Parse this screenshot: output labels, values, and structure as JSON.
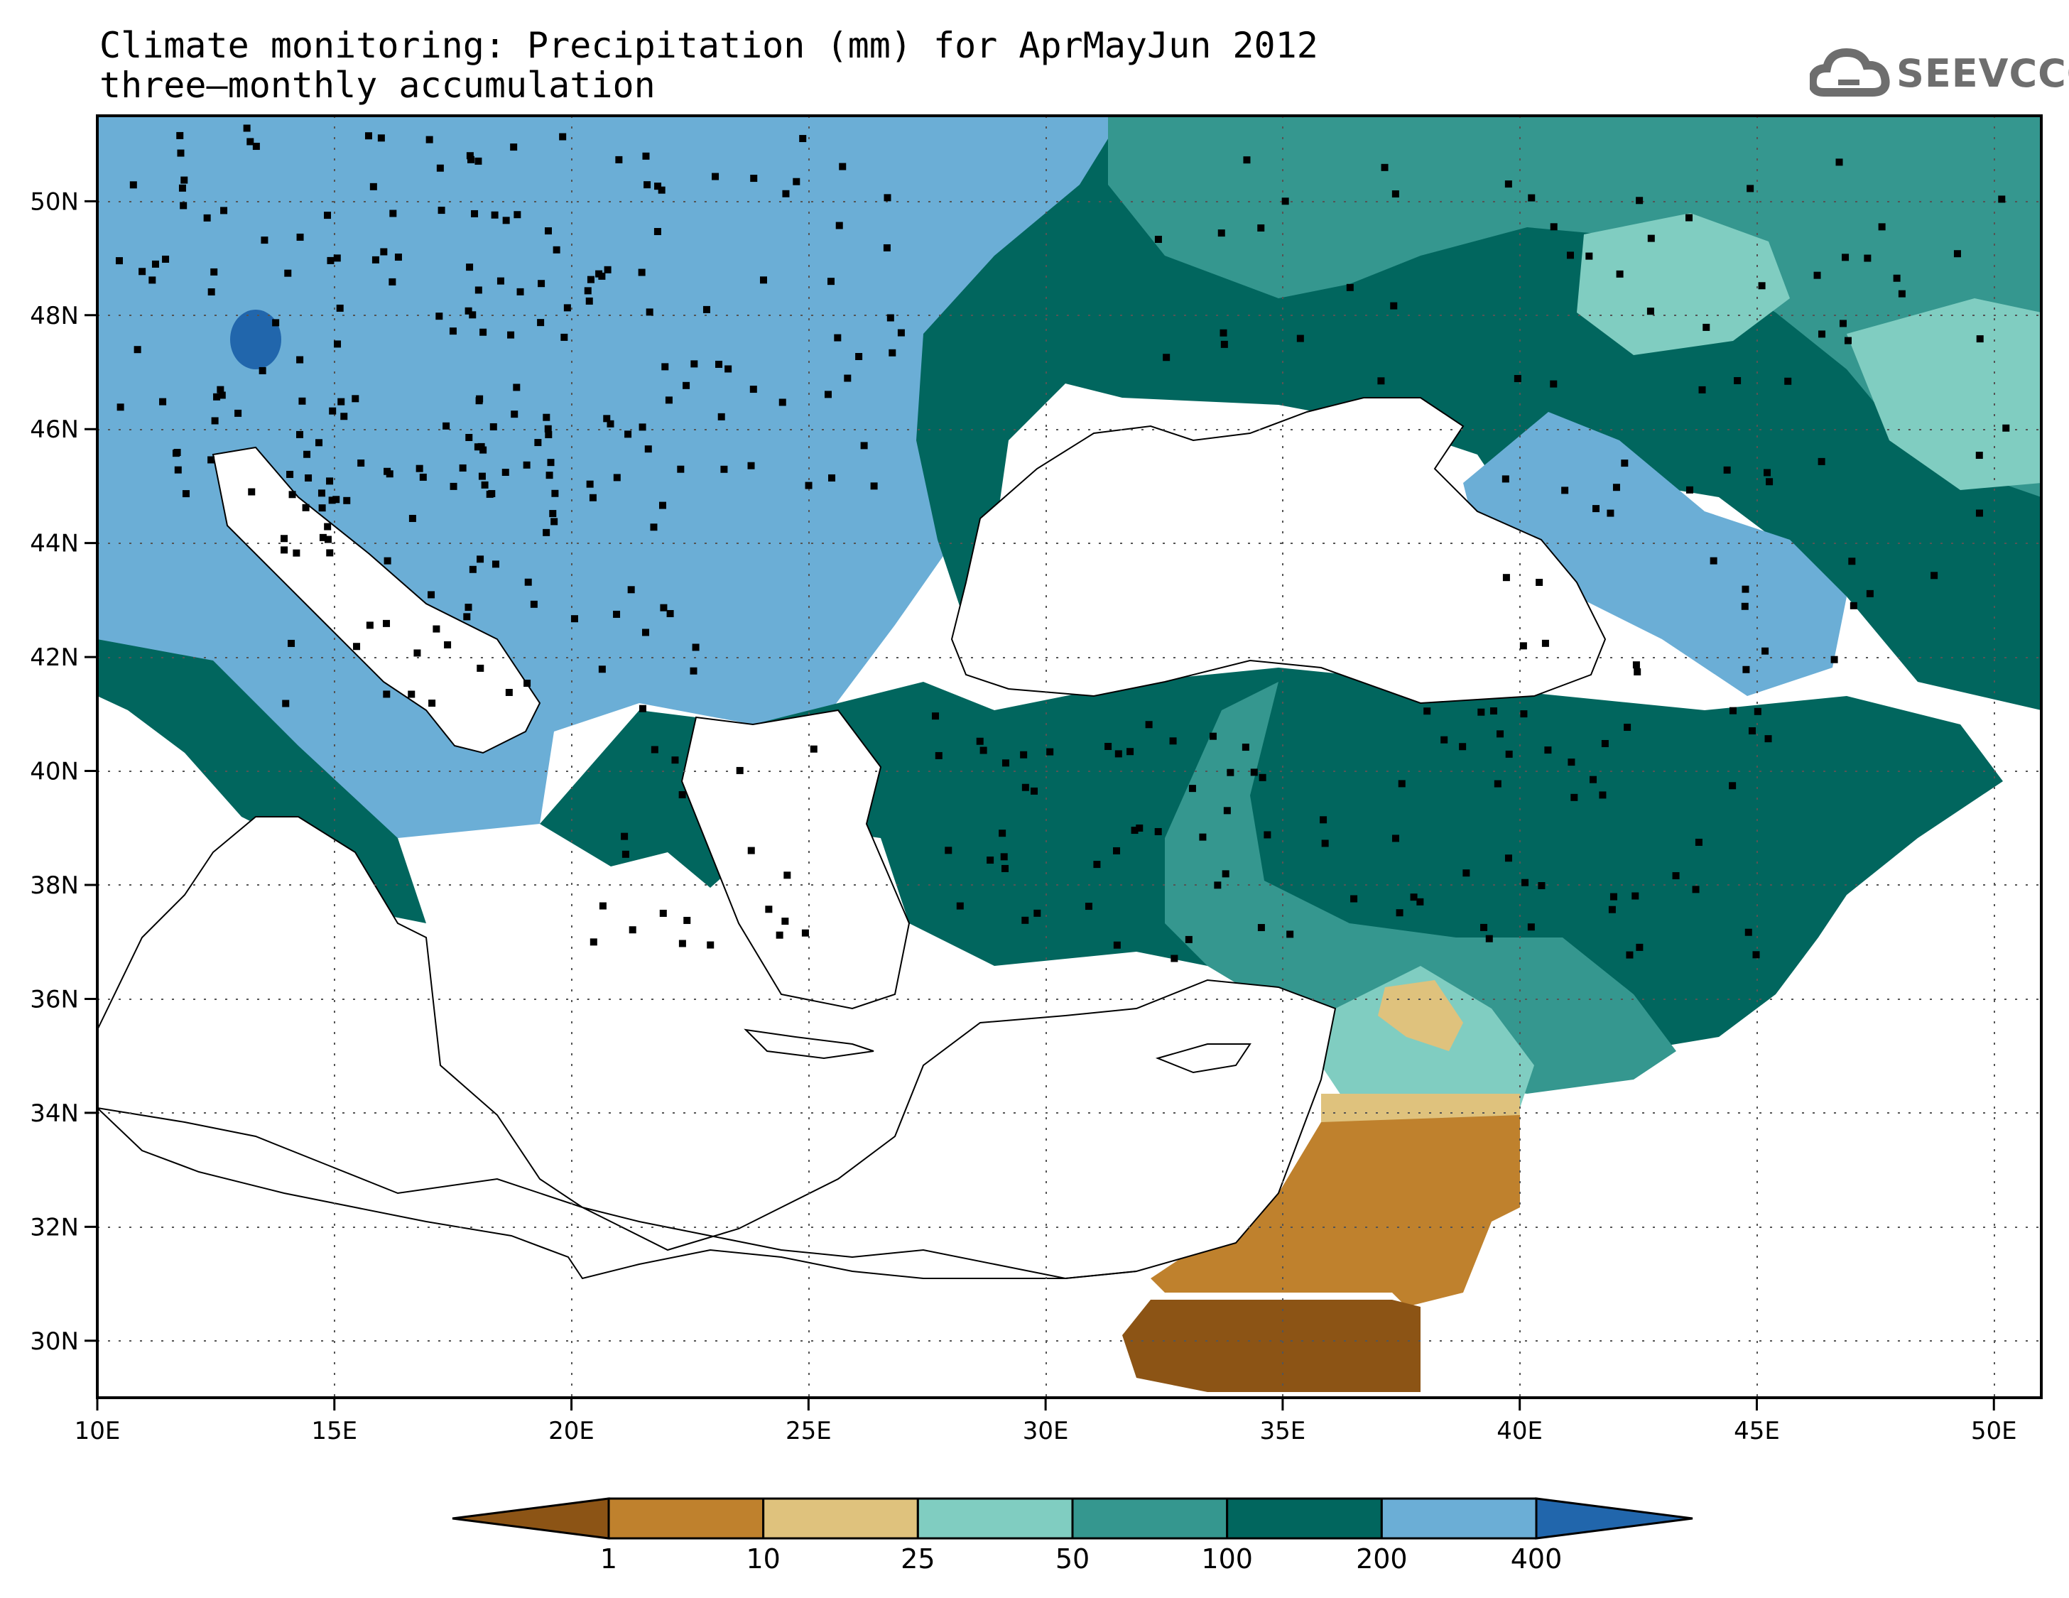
{
  "title": {
    "line1": "Climate monitoring: Precipitation (mm) for AprMayJun 2012",
    "line2": "three—monthly accumulation"
  },
  "logo": {
    "text": "SEEVCCC",
    "icon": "cloud-icon",
    "color": "#6e6e6e"
  },
  "map": {
    "lon_range": [
      10,
      51
    ],
    "lat_range": [
      29,
      51.5
    ],
    "x_ticks": [
      "10E",
      "15E",
      "20E",
      "25E",
      "30E",
      "35E",
      "40E",
      "45E",
      "50E"
    ],
    "y_ticks": [
      "30N",
      "32N",
      "34N",
      "36N",
      "38N",
      "40N",
      "42N",
      "44N",
      "46N",
      "48N",
      "50N"
    ],
    "grid": "dotted"
  },
  "colorbar": {
    "levels": [
      "1",
      "10",
      "25",
      "50",
      "100",
      "200",
      "400"
    ],
    "colors": [
      "#8c5415",
      "#bf812d",
      "#dfc27d",
      "#80cdc1",
      "#35978f",
      "#01665e",
      "#6baed6",
      "#2166ac"
    ],
    "extend": "both"
  }
}
